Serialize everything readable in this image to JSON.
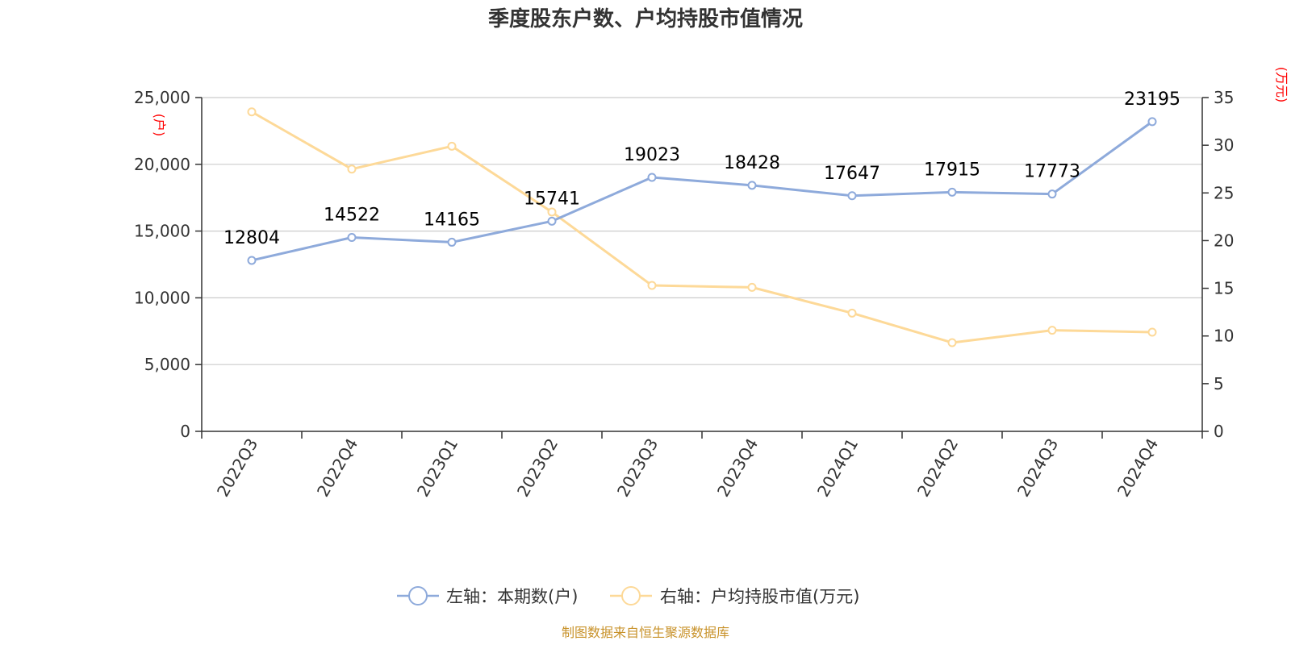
{
  "chart_data": {
    "type": "line",
    "title": "季度股东户数、户均持股市值情况",
    "categories": [
      "2022Q3",
      "2022Q4",
      "2023Q1",
      "2023Q2",
      "2023Q3",
      "2023Q4",
      "2024Q1",
      "2024Q2",
      "2024Q3",
      "2024Q4"
    ],
    "left_axis": {
      "unit": "(户)",
      "range": [
        0,
        25000
      ],
      "ticks": [
        0,
        5000,
        10000,
        15000,
        20000,
        25000
      ],
      "tick_labels": [
        "0",
        "5,000",
        "10,000",
        "15,000",
        "20,000",
        "25,000"
      ]
    },
    "right_axis": {
      "unit": "(万元)",
      "range": [
        0,
        35
      ],
      "ticks": [
        0,
        5,
        10,
        15,
        20,
        25,
        30,
        35
      ],
      "tick_labels": [
        "0",
        "5",
        "10",
        "15",
        "20",
        "25",
        "30",
        "35"
      ]
    },
    "series": [
      {
        "name": "左轴：本期数(户)",
        "axis": "left",
        "color": "#8eaadb",
        "values": [
          12804,
          14522,
          14165,
          15741,
          19023,
          18428,
          17647,
          17915,
          17773,
          23195
        ],
        "data_labels": [
          "12804",
          "14522",
          "14165",
          "15741",
          "19023",
          "18428",
          "17647",
          "17915",
          "17773",
          "23195"
        ]
      },
      {
        "name": "右轴：户均持股市值(万元)",
        "axis": "right",
        "color": "#fdd998",
        "values": [
          33.5,
          27.5,
          29.9,
          23.0,
          15.3,
          15.1,
          12.4,
          9.3,
          10.6,
          10.4
        ]
      }
    ],
    "grid": true,
    "legend_position": "bottom-center",
    "source": "制图数据来自恒生聚源数据库"
  }
}
